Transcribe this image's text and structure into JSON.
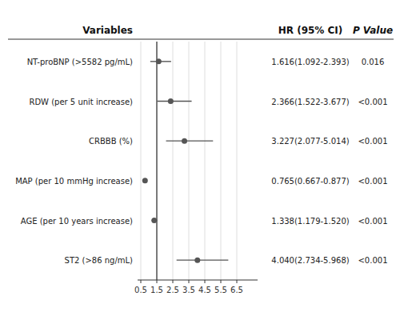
{
  "chart_data": {
    "type": "forest",
    "headers": {
      "variables": "Variables",
      "hr": "HR (95% CI)",
      "p": "P Value"
    },
    "categories": [
      "NT-proBNP (>5582 pg/mL)",
      "RDW (per 5 unit increase)",
      "CRBBB (%)",
      "MAP (per 10 mmHg increase)",
      "AGE (per 10 years increase)",
      "ST2 (>86 ng/mL)"
    ],
    "values": [
      1.616,
      2.366,
      3.227,
      0.765,
      1.338,
      4.04
    ],
    "ci_low": [
      1.092,
      1.522,
      2.077,
      0.667,
      1.179,
      2.734
    ],
    "ci_high": [
      2.393,
      3.677,
      5.014,
      0.877,
      1.52,
      5.968
    ],
    "value_labels": [
      "1.616(1.092-2.393)",
      "2.366(1.522-3.677)",
      "3.227(2.077-5.014)",
      "0.765(0.667-0.877)",
      "1.338(1.179-1.520)",
      "4.040(2.734-5.968)"
    ],
    "p_values": [
      "0.016",
      "<0.001",
      "<0.001",
      "<0.001",
      "<0.001",
      "<0.001"
    ],
    "ref_line": 1.5,
    "xlim": [
      0.3,
      7.8
    ],
    "xticks": [
      0.5,
      1.5,
      2.5,
      3.5,
      4.5,
      5.5,
      6.5
    ],
    "grid": true,
    "color": "#555555"
  }
}
